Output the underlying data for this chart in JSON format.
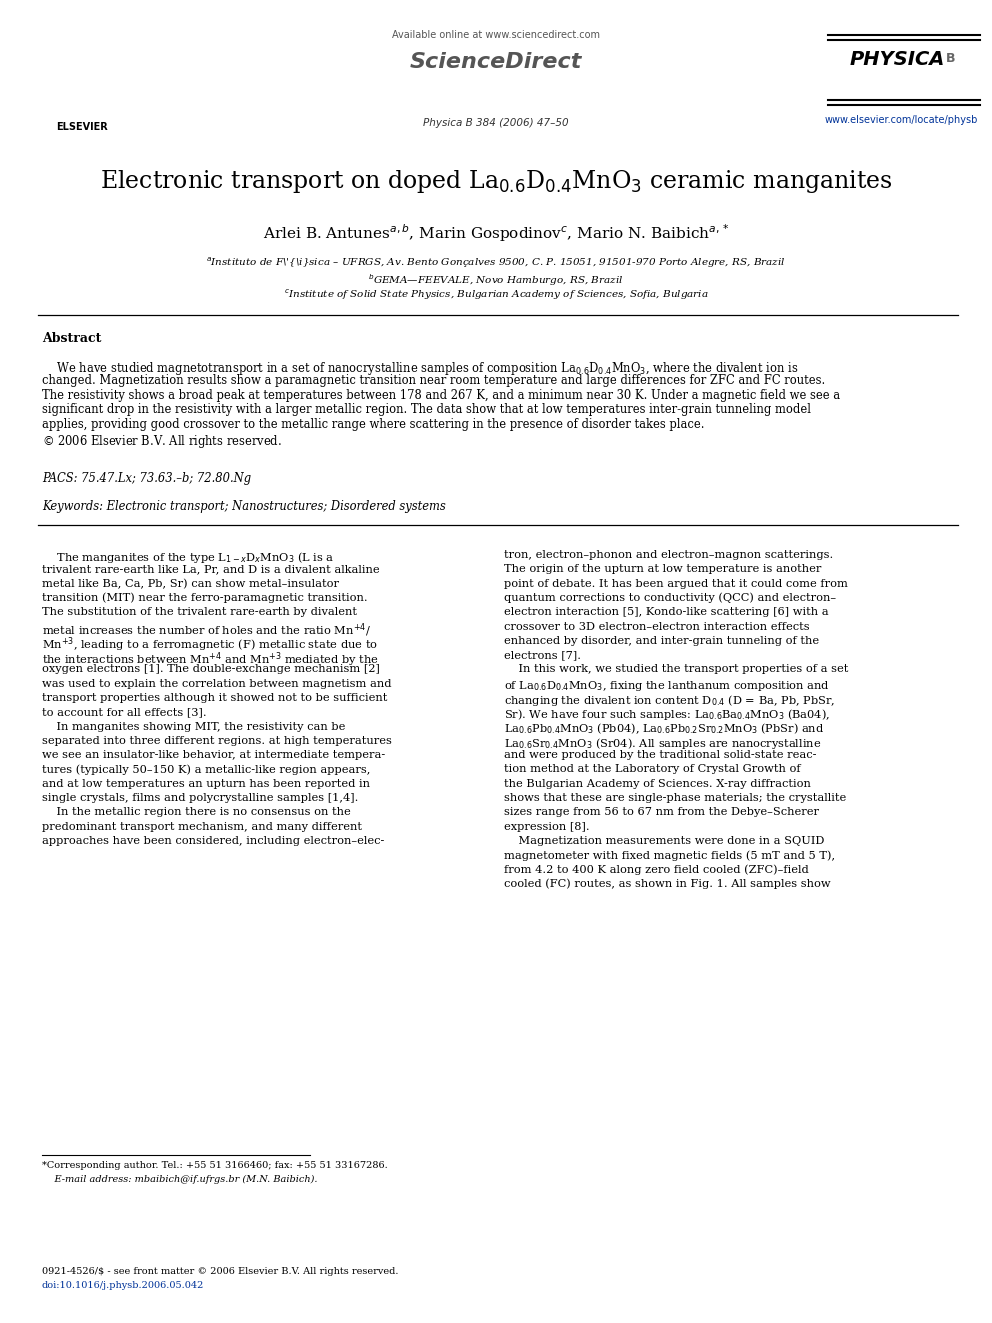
{
  "bg_color": "#ffffff",
  "header_available": "Available online at www.sciencedirect.com",
  "header_journal": "Physica B 384 (2006) 47–50",
  "header_website": "www.elsevier.com/locate/physb",
  "title": "Electronic transport on doped La$_{0.6}$D$_{0.4}$MnO$_3$ ceramic manganites",
  "authors": "Arlei B. Antunes$^{a,b}$, Marin Gospodinov$^c$, Mario N. Baibich$^{a,*}$",
  "aff1": "$^a$Instituto de Física – UFRGS, Av. Bento Gonçalves 9500, C. P. 15051, 91501-970 Porto Alegre, RS, Brazil",
  "aff2": "$^b$GEMA—FEEVALE, Novo Hamburgo, RS, Brazil",
  "aff3": "$^c$Institute of Solid State Physics, Bulgarian Academy of Sciences, Sofia, Bulgaria",
  "abstract_label": "Abstract",
  "abstract_body": "    We have studied magnetotransport in a set of nanocrystalline samples of composition La$_{0.6}$D$_{0.4}$MnO$_3$, where the divalent ion is\nchanged. Magnetization results show a paramagnetic transition near room temperature and large differences for ZFC and FC routes.\nThe resistivity shows a broad peak at temperatures between 178 and 267 K, and a minimum near 30 K. Under a magnetic field we see a\nsignificant drop in the resistivity with a larger metallic region. The data show that at low temperatures inter-grain tunneling model\napplies, providing good crossover to the metallic range where scattering in the presence of disorder takes place.\n© 2006 Elsevier B.V. All rights reserved.",
  "pacs": "PACS: 75.47.Lx; 73.63.–b; 72.80.Ng",
  "keywords": "Keywords: Electronic transport; Nanostructures; Disordered systems",
  "col_left": [
    "    The manganites of the type L$_{1-x}$D$_x$MnO$_3$ (L is a",
    "trivalent rare-earth like La, Pr, and D is a divalent alkaline",
    "metal like Ba, Ca, Pb, Sr) can show metal–insulator",
    "transition (MIT) near the ferro-paramagnetic transition.",
    "The substitution of the trivalent rare-earth by divalent",
    "metal increases the number of holes and the ratio Mn$^{+4}$/",
    "Mn$^{+3}$, leading to a ferromagnetic (F) metallic state due to",
    "the interactions between Mn$^{+4}$ and Mn$^{+3}$ mediated by the",
    "oxygen electrons [1]. The double-exchange mechanism [2]",
    "was used to explain the correlation between magnetism and",
    "transport properties although it showed not to be sufficient",
    "to account for all effects [3].",
    "    In manganites showing MIT, the resistivity can be",
    "separated into three different regions. at high temperatures",
    "we see an insulator-like behavior, at intermediate tempera-",
    "tures (typically 50–150 K) a metallic-like region appears,",
    "and at low temperatures an upturn has been reported in",
    "single crystals, films and polycrystalline samples [1,4].",
    "    In the metallic region there is no consensus on the",
    "predominant transport mechanism, and many different",
    "approaches have been considered, including electron–elec-"
  ],
  "col_right": [
    "tron, electron–phonon and electron–magnon scatterings.",
    "The origin of the upturn at low temperature is another",
    "point of debate. It has been argued that it could come from",
    "quantum corrections to conductivity (QCC) and electron–",
    "electron interaction [5], Kondo-like scattering [6] with a",
    "crossover to 3D electron–electron interaction effects",
    "enhanced by disorder, and inter-grain tunneling of the",
    "electrons [7].",
    "    In this work, we studied the transport properties of a set",
    "of La$_{0.6}$D$_{0.4}$MnO$_3$, fixing the lanthanum composition and",
    "changing the divalent ion content D$_{0.4}$ (D = Ba, Pb, PbSr,",
    "Sr). We have four such samples: La$_{0.6}$Ba$_{0.4}$MnO$_3$ (Ba04),",
    "La$_{0.6}$Pb$_{0.4}$MnO$_3$ (Pb04), La$_{0.6}$Pb$_{0.2}$Sr$_{0.2}$MnO$_3$ (PbSr) and",
    "La$_{0.6}$Sr$_{0.4}$MnO$_3$ (Sr04). All samples are nanocrystalline",
    "and were produced by the traditional solid-state reac-",
    "tion method at the Laboratory of Crystal Growth of",
    "the Bulgarian Academy of Sciences. X-ray diffraction",
    "shows that these are single-phase materials; the crystallite",
    "sizes range from 56 to 67 nm from the Debye–Scherer",
    "expression [8].",
    "    Magnetization measurements were done in a SQUID",
    "magnetometer with fixed magnetic fields (5 mT and 5 T),",
    "from 4.2 to 400 K along zero field cooled (ZFC)–field",
    "cooled (FC) routes, as shown in Fig. 1. All samples show"
  ],
  "footnote1": "*Corresponding author. Tel.: +55 51 3166460; fax: +55 51 33167286.",
  "footnote2": "    E-mail address: mbaibich@if.ufrgs.br (M.N. Baibich).",
  "footer1": "0921-4526/$ - see front matter © 2006 Elsevier B.V. All rights reserved.",
  "footer2": "doi:10.1016/j.physb.2006.05.042"
}
